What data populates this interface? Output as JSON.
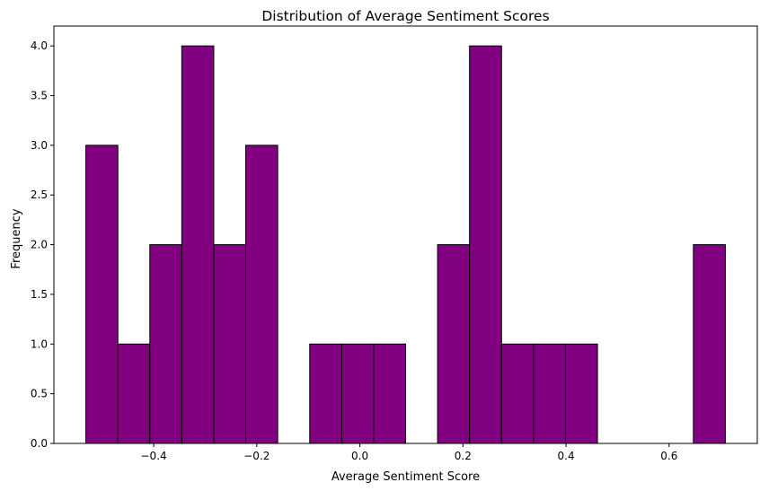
{
  "chart_data": {
    "type": "bar",
    "title": "Distribution of Average Sentiment Scores",
    "xlabel": "Average Sentiment Score",
    "ylabel": "Frequency",
    "bin_edges": [
      -0.5316,
      -0.4695,
      -0.4075,
      -0.3455,
      -0.2834,
      -0.2214,
      -0.1594,
      -0.0973,
      -0.0353,
      0.0267,
      0.0888,
      0.1508,
      0.2128,
      0.2749,
      0.3369,
      0.3989,
      0.461,
      0.523,
      0.585,
      0.6471,
      0.7091
    ],
    "values": [
      3,
      1,
      2,
      4,
      2,
      3,
      0,
      1,
      1,
      1,
      0,
      2,
      4,
      1,
      1,
      1,
      0,
      0,
      0,
      2
    ],
    "xlim": [
      -0.5936,
      0.7711
    ],
    "ylim": [
      0,
      4.2
    ],
    "xticks": [
      -0.4,
      -0.2,
      0.0,
      0.2,
      0.4,
      0.6
    ],
    "xtick_labels": [
      "−0.4",
      "−0.2",
      "0.0",
      "0.2",
      "0.4",
      "0.6"
    ],
    "yticks": [
      0,
      0.5,
      1,
      1.5,
      2,
      2.5,
      3,
      3.5,
      4
    ],
    "ytick_labels": [
      "0.0",
      "0.5",
      "1.0",
      "1.5",
      "2.0",
      "2.5",
      "3.0",
      "3.5",
      "4.0"
    ],
    "bar_color": "#800080",
    "edge_color": "#000000",
    "grid": false,
    "legend": "none"
  }
}
